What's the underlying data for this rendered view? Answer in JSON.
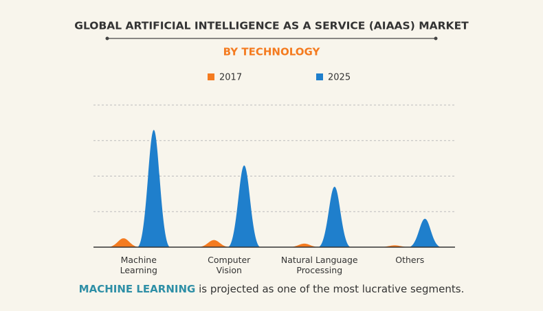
{
  "chart_data": {
    "type": "peak",
    "title": "GLOBAL ARTIFICIAL INTELLIGENCE AS A SERVICE (AIAAS) MARKET",
    "subtitle": "BY TECHNOLOGY",
    "categories": [
      "Machine\nLearning",
      "Computer\nVision",
      "Natural Language\nProcessing",
      "Others"
    ],
    "series": [
      {
        "name": "2017",
        "color": "#f47b20",
        "values": [
          0.25,
          0.2,
          0.1,
          0.05
        ]
      },
      {
        "name": "2025",
        "color": "#1f7fcc",
        "values": [
          3.3,
          2.3,
          1.7,
          0.8
        ]
      }
    ],
    "ylim": [
      0,
      4
    ],
    "gridlines": [
      1,
      2,
      3,
      4
    ],
    "grid": true,
    "footer": {
      "highlight": "MACHINE LEARNING",
      "text": "is projected as one of the most lucrative segments."
    }
  }
}
